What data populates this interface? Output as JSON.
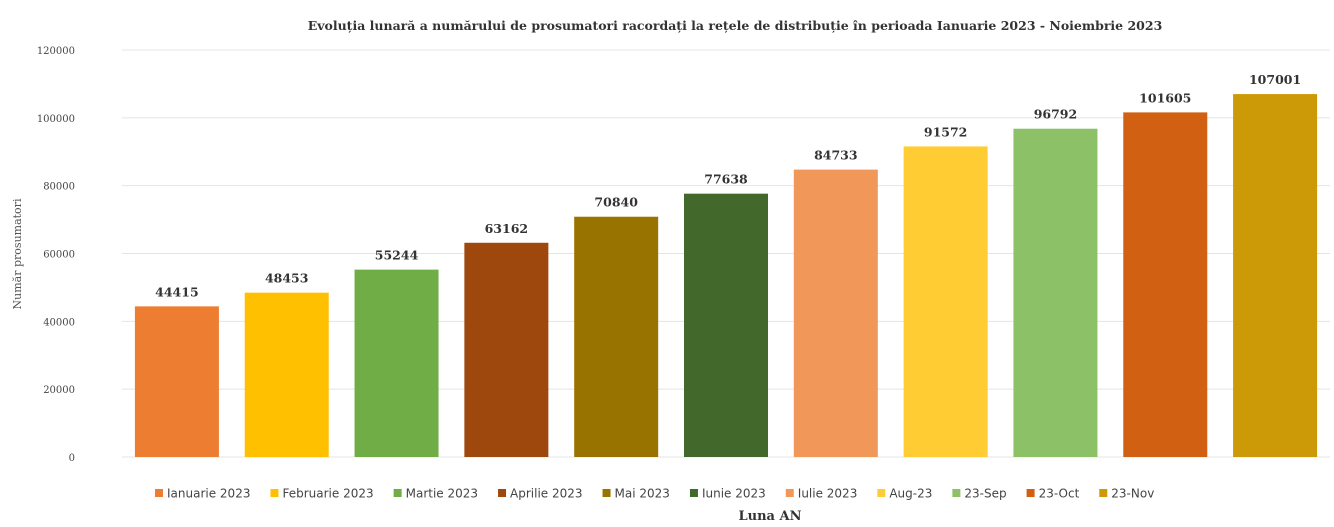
{
  "chart_data": {
    "type": "bar",
    "title": "Evoluția lunară a numărului de prosumatori racordați la rețele de distribuție în perioada Ianuarie 2023 - Noiembrie 2023",
    "xlabel": "Luna AN",
    "ylabel": "Număr prosumatori",
    "ylim": [
      0,
      120000
    ],
    "yticks": [
      "0",
      "20000",
      "40000",
      "60000",
      "80000",
      "100000",
      "120000"
    ],
    "grid": true,
    "legend_position": "bottom",
    "categories": [
      "Ianuarie 2023",
      "Februarie 2023",
      "Martie 2023",
      "Aprilie 2023",
      "Mai 2023",
      "Iunie 2023",
      "Iulie 2023",
      "Aug-23",
      "23-Sep",
      "23-Oct",
      "23-Nov"
    ],
    "values": [
      44415,
      48453,
      55244,
      63162,
      70840,
      77638,
      84733,
      91572,
      96792,
      101605,
      107001
    ],
    "colors": [
      "#ed7d31",
      "#ffc000",
      "#70ad47",
      "#9e480e",
      "#997300",
      "#43682b",
      "#f1975a",
      "#ffcd33",
      "#8cc168",
      "#d26012",
      "#cc9a06"
    ]
  }
}
